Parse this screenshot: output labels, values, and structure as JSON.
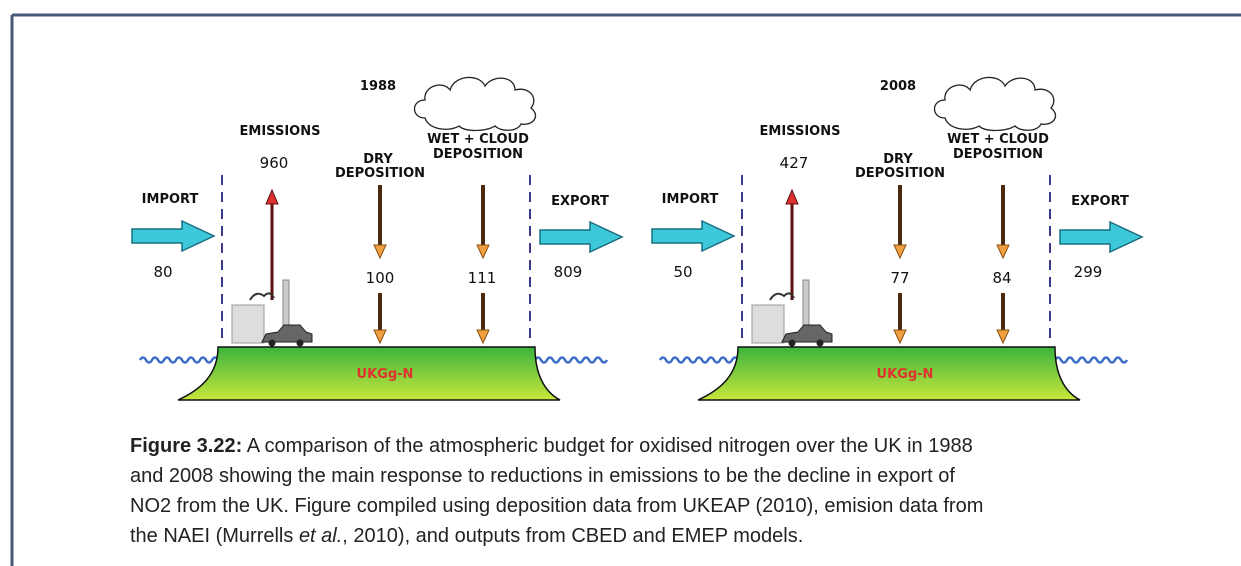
{
  "panels": [
    {
      "year": "1988",
      "import_label": "IMPORT",
      "import_value": "80",
      "emissions_label": "EMISSIONS",
      "emissions_value": "960",
      "dry_label": [
        "DRY",
        "DEPOSITION"
      ],
      "dry_value": "100",
      "wet_label": [
        "WET + CLOUD",
        "DEPOSITION"
      ],
      "wet_value": "111",
      "export_label": "EXPORT",
      "export_value": "809",
      "land_label": "UKGg-N"
    },
    {
      "year": "2008",
      "import_label": "IMPORT",
      "import_value": "50",
      "emissions_label": "EMISSIONS",
      "emissions_value": "427",
      "dry_label": [
        "DRY",
        "DEPOSITION"
      ],
      "dry_value": "77",
      "wet_label": [
        "WET + CLOUD",
        "DEPOSITION"
      ],
      "wet_value": "84",
      "export_label": "EXPORT",
      "export_value": "299",
      "land_label": "UKGg-N"
    }
  ],
  "caption": {
    "label": "Figure 3.22:",
    "lines": [
      " A comparison of the atmospheric budget for oxidised nitrogen over the UK in 1988",
      "and 2008 showing the main response to reductions in emissions to be the decline in export of",
      "NO2 from the UK. Figure compiled using deposition data from UKEAP (2010), emision data from"
    ],
    "last_line": [
      "the NAEI (Murrells ",
      "et al.",
      ", 2010), and outputs from CBED and EMEP models."
    ]
  }
}
